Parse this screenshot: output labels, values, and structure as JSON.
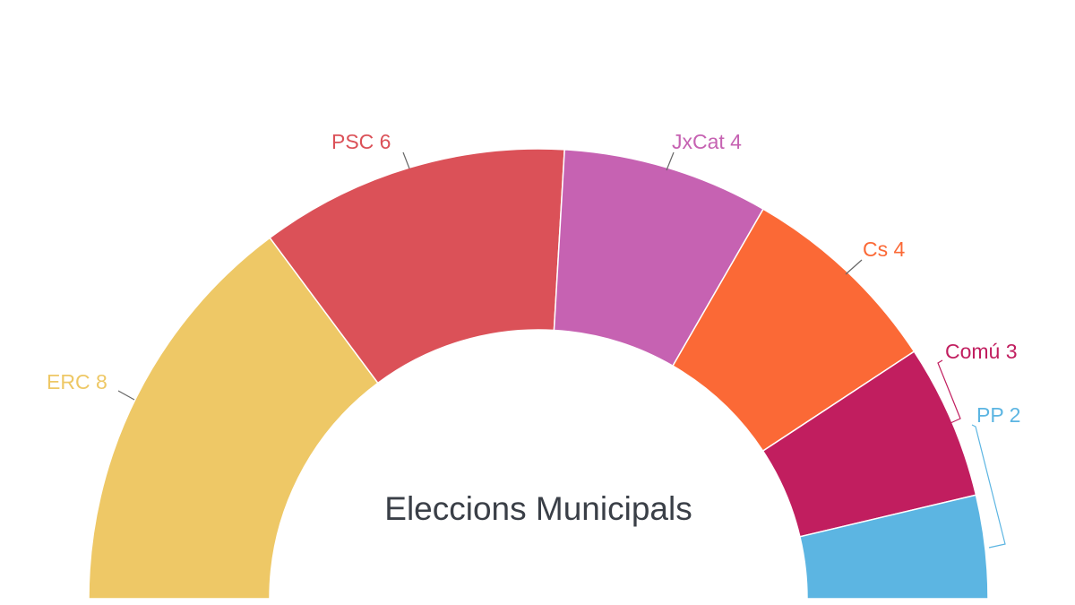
{
  "chart_data": {
    "type": "pie",
    "subtype": "parliament-half-donut",
    "title": "Eleccions Municipals",
    "total_seats": 27,
    "series": [
      {
        "name": "ERC",
        "value": 8,
        "label": "ERC 8",
        "color": "#eec866"
      },
      {
        "name": "PSC",
        "value": 6,
        "label": "PSC 6",
        "color": "#db5158"
      },
      {
        "name": "JxCat",
        "value": 4,
        "label": "JxCat 4",
        "color": "#c662b2"
      },
      {
        "name": "Cs",
        "value": 4,
        "label": "Cs 4",
        "color": "#fb6936"
      },
      {
        "name": "Comú",
        "value": 3,
        "label": "Comú 3",
        "color": "#c11e5f"
      },
      {
        "name": "PP",
        "value": 2,
        "label": "PP 2",
        "color": "#5cb5e2"
      }
    ],
    "legend": "none (inline labels)"
  }
}
